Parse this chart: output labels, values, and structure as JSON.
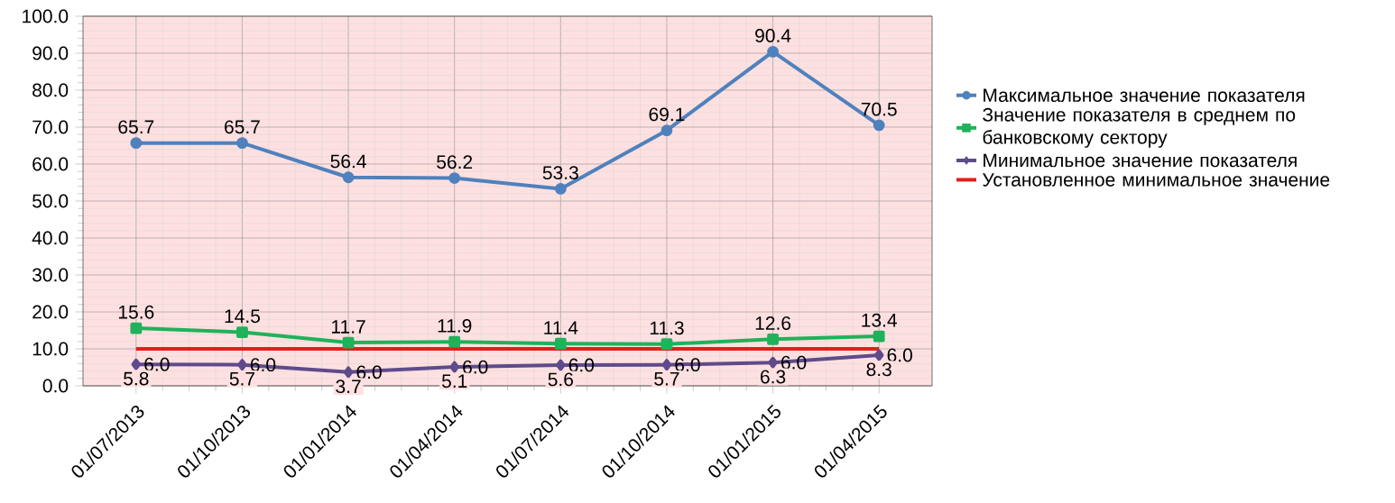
{
  "chart_data": {
    "type": "line",
    "categories": [
      "01/07/2013",
      "01/10/2013",
      "01/01/2014",
      "01/04/2014",
      "01/07/2014",
      "01/10/2014",
      "01/01/2015",
      "01/04/2015"
    ],
    "series": [
      {
        "name": "Максимальное значение показателя",
        "color": "#4f81bd",
        "marker": "circle",
        "values": [
          65.7,
          65.7,
          56.4,
          56.2,
          53.3,
          69.1,
          90.4,
          70.5
        ],
        "value_labels": [
          "65.7",
          "65.7",
          "56.4",
          "56.2",
          "53.3",
          "69.1",
          "90.4",
          "70.5"
        ]
      },
      {
        "name": "Значение показателя в среднем по банковскому сектору",
        "color": "#1fb25a",
        "marker": "square",
        "values": [
          15.6,
          14.5,
          11.7,
          11.9,
          11.4,
          11.3,
          12.6,
          13.4
        ],
        "value_labels": [
          "15.6",
          "14.5",
          "11.7",
          "11.9",
          "11.4",
          "11.3",
          "12.6",
          "13.4"
        ]
      },
      {
        "name": "Минимальное значение показателя",
        "color": "#5f4b8b",
        "marker": "diamond",
        "values": [
          5.8,
          5.7,
          3.7,
          5.1,
          5.6,
          5.7,
          6.3,
          8.3
        ],
        "value_labels": [
          "5.8",
          "5.7",
          "3.7",
          "5.1",
          "5.6",
          "5.7",
          "6.3",
          "8.3"
        ]
      },
      {
        "name": "Установленное минимальное значение",
        "color": "#e0201b",
        "marker": "none",
        "values": [
          10.0,
          10.0,
          10.0,
          10.0,
          10.0,
          10.0,
          10.0,
          10.0
        ]
      }
    ],
    "annotations": [
      "6.0",
      "6.0",
      "6.0",
      "6.0",
      "6.0",
      "6.0",
      "6.0",
      "6.0"
    ],
    "ylim": [
      0,
      100
    ],
    "yticks": [
      {
        "value": 0,
        "label": "0.0"
      },
      {
        "value": 10,
        "label": "10.0"
      },
      {
        "value": 20,
        "label": "20.0"
      },
      {
        "value": 30,
        "label": "30.0"
      },
      {
        "value": 40,
        "label": "40.0"
      },
      {
        "value": 50,
        "label": "50.0"
      },
      {
        "value": 60,
        "label": "60.0"
      },
      {
        "value": 70,
        "label": "70.0"
      },
      {
        "value": 80,
        "label": "80.0"
      },
      {
        "value": 90,
        "label": "90.0"
      },
      {
        "value": 100,
        "label": "100.0"
      }
    ],
    "grid": true,
    "legend": "right",
    "line_style": "solid"
  }
}
